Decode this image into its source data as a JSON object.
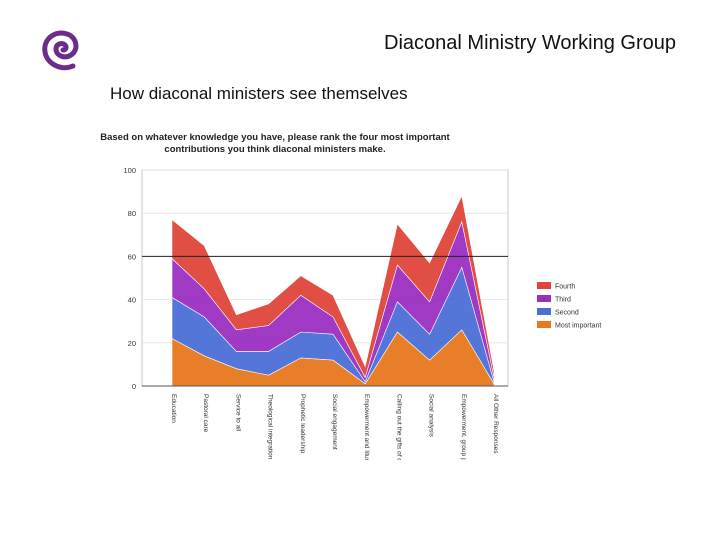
{
  "slide": {
    "title": "Diaconal Ministry Working Group",
    "subtitle": "How diaconal ministers see themselves",
    "logo_icon": "purple-spiral-icon",
    "logo_color": "#6b2d8c"
  },
  "chart_data": {
    "type": "area",
    "stacked": true,
    "title": "Based on whatever knowledge you have, please rank the four most important contributions you think diaconal ministers make.",
    "title_lines": [
      "Based on whatever knowledge you have, please rank the four most important",
      "contributions you think diaconal ministers make."
    ],
    "xlabel": "",
    "ylabel": "",
    "ylim": [
      0,
      100
    ],
    "yticks": [
      0,
      20,
      40,
      60,
      80,
      100
    ],
    "grid": true,
    "reference_line": 60,
    "legend_position": "right",
    "categories": [
      "Education",
      "Pastoral care",
      "Service to all",
      "Theological integration",
      "Prophetic leadership",
      "Social engagement",
      "Empowerment and liturgical enactment",
      "Calling out the gifts of others",
      "Social analysis",
      "Empowerment, group process",
      "All Other Responses"
    ],
    "series": [
      {
        "name": "Most important",
        "color": "#e8781e",
        "values": [
          22,
          14,
          8,
          5,
          13,
          12,
          1,
          25,
          12,
          26,
          1
        ]
      },
      {
        "name": "Second",
        "color": "#4a6fd6",
        "values": [
          19,
          18,
          8,
          11,
          12,
          12,
          1,
          14,
          12,
          29,
          1
        ]
      },
      {
        "name": "Third",
        "color": "#9b2fc0",
        "values": [
          18,
          13,
          10,
          12,
          17,
          8,
          2,
          17,
          15,
          21,
          2
        ]
      },
      {
        "name": "Fourth",
        "color": "#e0453a",
        "values": [
          18,
          20,
          7,
          10,
          9,
          10,
          5,
          19,
          18,
          12,
          3
        ]
      }
    ]
  }
}
